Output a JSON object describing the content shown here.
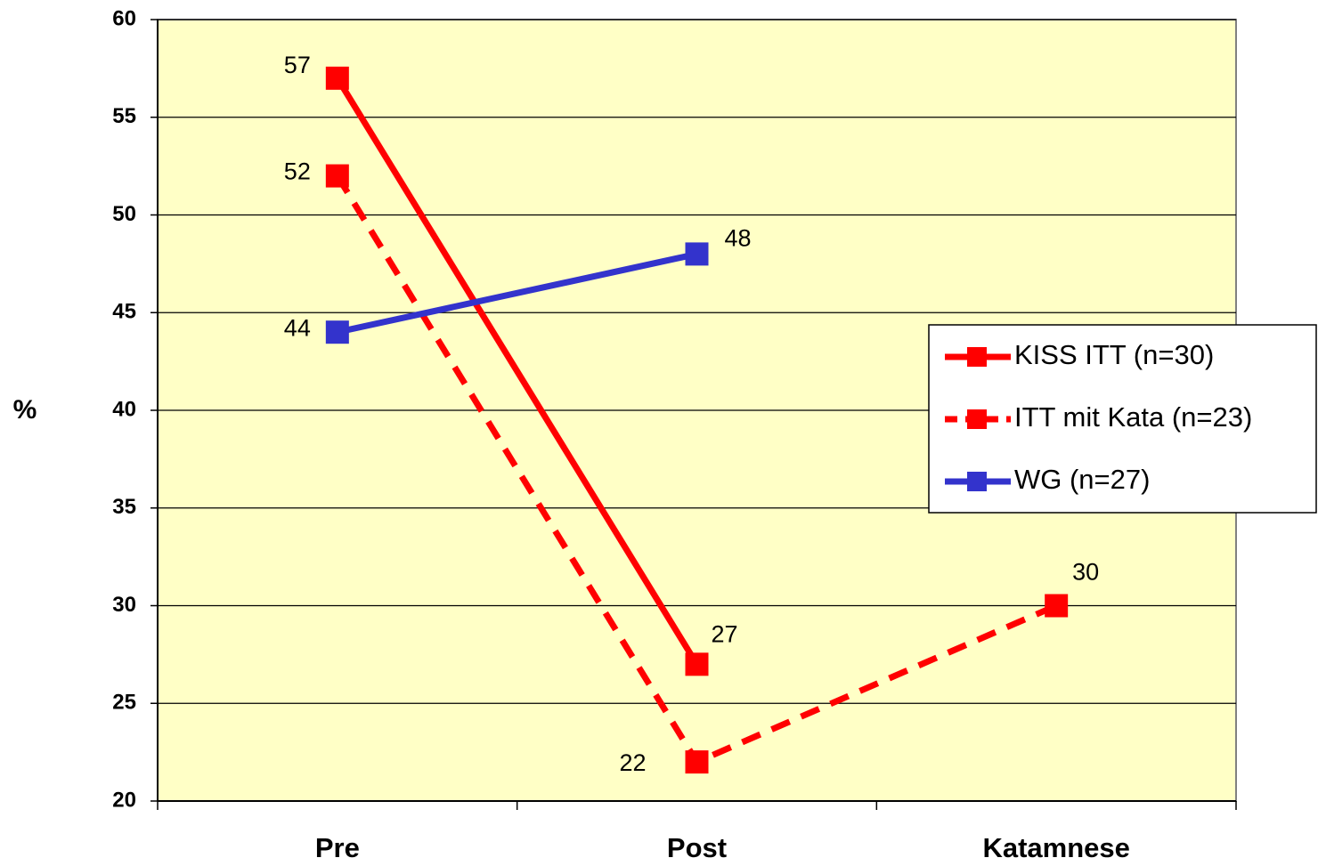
{
  "chart_data": {
    "type": "line",
    "y_label": "%",
    "categories": [
      "Pre",
      "Post",
      "Katamnese"
    ],
    "series": [
      {
        "name": "KISS ITT (n=30)",
        "color": "#ff0000",
        "line_style": "solid",
        "values": [
          57,
          27,
          null
        ]
      },
      {
        "name": "ITT mit Kata (n=23)",
        "color": "#ff0000",
        "line_style": "dashed",
        "values": [
          52,
          22,
          30
        ]
      },
      {
        "name": "WG (n=27)",
        "color": "#3333cc",
        "line_style": "solid",
        "values": [
          44,
          48,
          null
        ]
      }
    ],
    "ylim": [
      20,
      60
    ],
    "yticks": [
      20,
      25,
      30,
      35,
      40,
      45,
      50,
      55,
      60
    ],
    "grid": true,
    "data_labels": true,
    "legend": "right",
    "plot_background": "#ffffc6"
  }
}
